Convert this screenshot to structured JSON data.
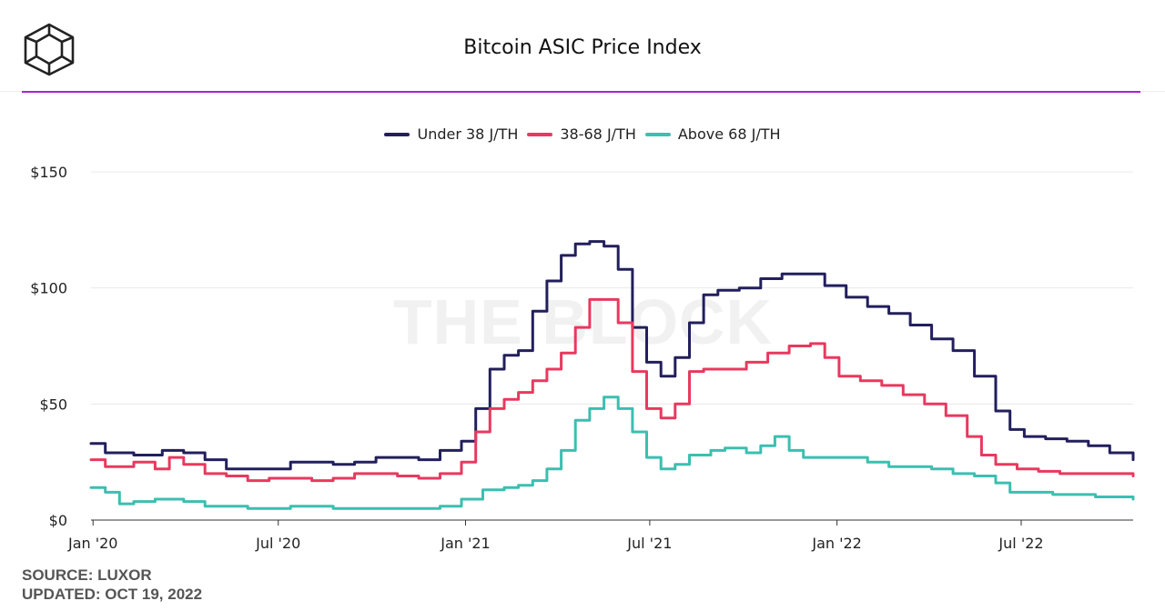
{
  "chart_data": {
    "type": "line",
    "title": "Bitcoin ASIC Price Index",
    "watermark": "THE BLOCK",
    "xlabel": "",
    "ylabel": "",
    "ylim": [
      0,
      150
    ],
    "yticks": [
      {
        "value": 0,
        "label": "$0"
      },
      {
        "value": 50,
        "label": "$50"
      },
      {
        "value": 100,
        "label": "$100"
      },
      {
        "value": 150,
        "label": "$150"
      }
    ],
    "xlim": [
      "2019-12-30",
      "2022-10-19"
    ],
    "xticks": [
      {
        "date": "2020-01-01",
        "label": "Jan '20"
      },
      {
        "date": "2020-07-01",
        "label": "Jul '20"
      },
      {
        "date": "2021-01-01",
        "label": "Jan '21"
      },
      {
        "date": "2021-07-01",
        "label": "Jul '21"
      },
      {
        "date": "2022-01-01",
        "label": "Jan '22"
      },
      {
        "date": "2022-07-01",
        "label": "Jul '22"
      }
    ],
    "grid": true,
    "legend_position": "top-center",
    "series": [
      {
        "name": "Under 38 J/TH",
        "color": "#221f5c",
        "points": [
          [
            "2019-12-30",
            33
          ],
          [
            "2020-01-13",
            29
          ],
          [
            "2020-02-10",
            28
          ],
          [
            "2020-03-09",
            30
          ],
          [
            "2020-03-30",
            29
          ],
          [
            "2020-04-20",
            26
          ],
          [
            "2020-05-11",
            22
          ],
          [
            "2020-06-01",
            22
          ],
          [
            "2020-06-22",
            22
          ],
          [
            "2020-07-13",
            25
          ],
          [
            "2020-08-03",
            25
          ],
          [
            "2020-08-24",
            24
          ],
          [
            "2020-09-14",
            25
          ],
          [
            "2020-10-05",
            27
          ],
          [
            "2020-10-26",
            27
          ],
          [
            "2020-11-16",
            26
          ],
          [
            "2020-12-07",
            30
          ],
          [
            "2020-12-28",
            34
          ],
          [
            "2021-01-11",
            48
          ],
          [
            "2021-01-25",
            65
          ],
          [
            "2021-02-08",
            71
          ],
          [
            "2021-02-22",
            73
          ],
          [
            "2021-03-08",
            90
          ],
          [
            "2021-03-22",
            103
          ],
          [
            "2021-04-05",
            114
          ],
          [
            "2021-04-19",
            119
          ],
          [
            "2021-05-03",
            120
          ],
          [
            "2021-05-17",
            118
          ],
          [
            "2021-05-31",
            108
          ],
          [
            "2021-06-14",
            83
          ],
          [
            "2021-06-28",
            68
          ],
          [
            "2021-07-12",
            62
          ],
          [
            "2021-07-26",
            70
          ],
          [
            "2021-08-09",
            85
          ],
          [
            "2021-08-23",
            97
          ],
          [
            "2021-09-06",
            99
          ],
          [
            "2021-09-27",
            100
          ],
          [
            "2021-10-18",
            104
          ],
          [
            "2021-11-08",
            106
          ],
          [
            "2021-11-29",
            106
          ],
          [
            "2021-12-20",
            101
          ],
          [
            "2022-01-10",
            96
          ],
          [
            "2022-01-31",
            92
          ],
          [
            "2022-02-21",
            89
          ],
          [
            "2022-03-14",
            84
          ],
          [
            "2022-04-04",
            78
          ],
          [
            "2022-04-25",
            73
          ],
          [
            "2022-05-16",
            62
          ],
          [
            "2022-06-06",
            47
          ],
          [
            "2022-06-20",
            39
          ],
          [
            "2022-07-04",
            36
          ],
          [
            "2022-07-25",
            35
          ],
          [
            "2022-08-15",
            34
          ],
          [
            "2022-09-05",
            32
          ],
          [
            "2022-09-26",
            29
          ],
          [
            "2022-10-19",
            26
          ]
        ]
      },
      {
        "name": "38-68 J/TH",
        "color": "#e8395f",
        "points": [
          [
            "2019-12-30",
            26
          ],
          [
            "2020-01-13",
            23
          ],
          [
            "2020-02-10",
            25
          ],
          [
            "2020-03-02",
            22
          ],
          [
            "2020-03-16",
            27
          ],
          [
            "2020-03-30",
            24
          ],
          [
            "2020-04-20",
            20
          ],
          [
            "2020-05-11",
            19
          ],
          [
            "2020-06-01",
            17
          ],
          [
            "2020-06-22",
            18
          ],
          [
            "2020-07-13",
            18
          ],
          [
            "2020-08-03",
            17
          ],
          [
            "2020-08-24",
            18
          ],
          [
            "2020-09-14",
            20
          ],
          [
            "2020-10-05",
            20
          ],
          [
            "2020-10-26",
            19
          ],
          [
            "2020-11-16",
            18
          ],
          [
            "2020-12-07",
            20
          ],
          [
            "2020-12-28",
            25
          ],
          [
            "2021-01-11",
            38
          ],
          [
            "2021-01-25",
            48
          ],
          [
            "2021-02-08",
            52
          ],
          [
            "2021-02-22",
            55
          ],
          [
            "2021-03-08",
            60
          ],
          [
            "2021-03-22",
            65
          ],
          [
            "2021-04-05",
            72
          ],
          [
            "2021-04-19",
            83
          ],
          [
            "2021-05-03",
            95
          ],
          [
            "2021-05-17",
            95
          ],
          [
            "2021-05-31",
            85
          ],
          [
            "2021-06-14",
            64
          ],
          [
            "2021-06-28",
            48
          ],
          [
            "2021-07-12",
            44
          ],
          [
            "2021-07-26",
            50
          ],
          [
            "2021-08-09",
            64
          ],
          [
            "2021-08-23",
            65
          ],
          [
            "2021-09-13",
            65
          ],
          [
            "2021-10-04",
            68
          ],
          [
            "2021-10-25",
            72
          ],
          [
            "2021-11-15",
            75
          ],
          [
            "2021-12-06",
            76
          ],
          [
            "2021-12-20",
            70
          ],
          [
            "2022-01-03",
            62
          ],
          [
            "2022-01-24",
            60
          ],
          [
            "2022-02-14",
            58
          ],
          [
            "2022-03-07",
            54
          ],
          [
            "2022-03-28",
            50
          ],
          [
            "2022-04-18",
            45
          ],
          [
            "2022-05-09",
            36
          ],
          [
            "2022-05-23",
            28
          ],
          [
            "2022-06-06",
            24
          ],
          [
            "2022-06-27",
            22
          ],
          [
            "2022-07-18",
            21
          ],
          [
            "2022-08-08",
            20
          ],
          [
            "2022-09-05",
            20
          ],
          [
            "2022-09-26",
            20
          ],
          [
            "2022-10-19",
            19
          ]
        ]
      },
      {
        "name": "Above 68 J/TH",
        "color": "#3bbfb0",
        "points": [
          [
            "2019-12-30",
            14
          ],
          [
            "2020-01-13",
            12
          ],
          [
            "2020-01-27",
            7
          ],
          [
            "2020-02-10",
            8
          ],
          [
            "2020-03-02",
            9
          ],
          [
            "2020-03-30",
            8
          ],
          [
            "2020-04-20",
            6
          ],
          [
            "2020-05-11",
            6
          ],
          [
            "2020-06-01",
            5
          ],
          [
            "2020-06-22",
            5
          ],
          [
            "2020-07-13",
            6
          ],
          [
            "2020-08-03",
            6
          ],
          [
            "2020-08-24",
            5
          ],
          [
            "2020-09-14",
            5
          ],
          [
            "2020-10-05",
            5
          ],
          [
            "2020-10-26",
            5
          ],
          [
            "2020-11-16",
            5
          ],
          [
            "2020-12-07",
            6
          ],
          [
            "2020-12-28",
            9
          ],
          [
            "2021-01-18",
            13
          ],
          [
            "2021-02-08",
            14
          ],
          [
            "2021-02-22",
            15
          ],
          [
            "2021-03-08",
            17
          ],
          [
            "2021-03-22",
            22
          ],
          [
            "2021-04-05",
            30
          ],
          [
            "2021-04-19",
            43
          ],
          [
            "2021-05-03",
            48
          ],
          [
            "2021-05-17",
            53
          ],
          [
            "2021-05-31",
            48
          ],
          [
            "2021-06-14",
            38
          ],
          [
            "2021-06-28",
            27
          ],
          [
            "2021-07-12",
            22
          ],
          [
            "2021-07-26",
            24
          ],
          [
            "2021-08-09",
            28
          ],
          [
            "2021-08-30",
            30
          ],
          [
            "2021-09-13",
            31
          ],
          [
            "2021-10-04",
            29
          ],
          [
            "2021-10-18",
            32
          ],
          [
            "2021-11-01",
            36
          ],
          [
            "2021-11-15",
            30
          ],
          [
            "2021-11-29",
            27
          ],
          [
            "2021-12-20",
            27
          ],
          [
            "2022-01-10",
            27
          ],
          [
            "2022-01-31",
            25
          ],
          [
            "2022-02-21",
            23
          ],
          [
            "2022-03-14",
            23
          ],
          [
            "2022-04-04",
            22
          ],
          [
            "2022-04-25",
            20
          ],
          [
            "2022-05-16",
            19
          ],
          [
            "2022-06-06",
            16
          ],
          [
            "2022-06-20",
            12
          ],
          [
            "2022-07-11",
            12
          ],
          [
            "2022-08-01",
            11
          ],
          [
            "2022-08-22",
            11
          ],
          [
            "2022-09-12",
            10
          ],
          [
            "2022-10-19",
            9
          ]
        ]
      }
    ]
  },
  "source_text": "SOURCE: LUXOR",
  "updated_text": "UPDATED: OCT 19, 2022",
  "colors": {
    "accent_rule": "#b01fd6",
    "grid": "#e8e8e8",
    "watermark": "#f1f1f1"
  },
  "icons": {
    "logo": "the-block-cube-logo"
  }
}
